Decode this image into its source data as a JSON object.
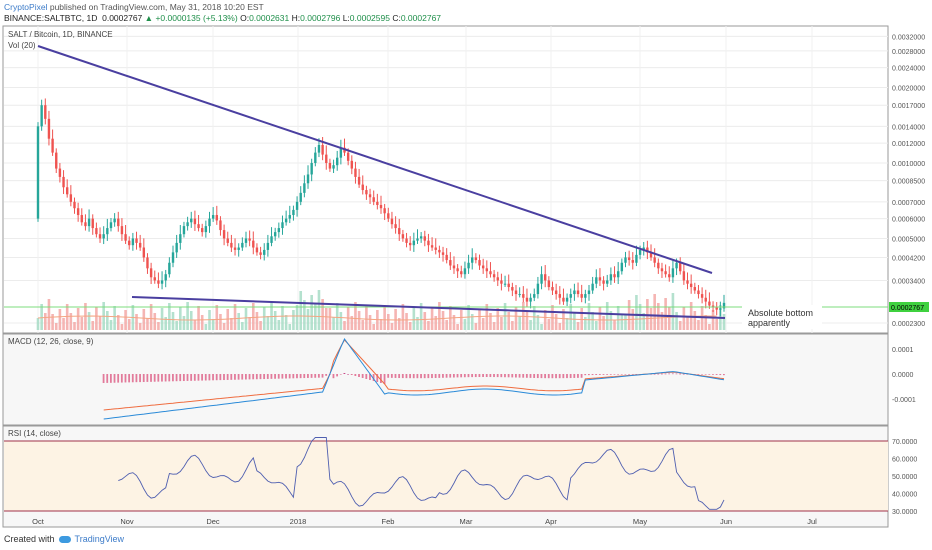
{
  "header": {
    "author": "CryptoPixel",
    "published": "published on TradingView.com, May 31, 2018 10:20 EST",
    "symbol": "BINANCE:SALTBTC, 1D",
    "last": "0.0002767",
    "change": "+0.0000135 (+5.13%)",
    "o_label": "O:",
    "o": "0.0002631",
    "h_label": "H:",
    "h": "0.0002796",
    "l_label": "L:",
    "l": "0.0002595",
    "c_label": "C:",
    "c": "0.0002767"
  },
  "pane_labels": {
    "price": "SALT / Bitcoin, 1D, BINANCE",
    "volume": "Vol (20)",
    "macd": "MACD (12, 26, close, 9)",
    "rsi": "RSI (14, close)"
  },
  "annotation": "Absolute bottom\napparently",
  "footer": {
    "created": "Created with",
    "brand": "TradingView"
  },
  "colors": {
    "up": "#26a69a",
    "down": "#ef5350",
    "trendline": "#4a3fa0",
    "macd": "#2a8ad8",
    "signal": "#ef6c3f",
    "rsi": "#4f5fb0",
    "rsi_band_line": "#a0314a",
    "support_line": "#7cdc7c",
    "price_label_bg": "#3fd13f"
  },
  "chart_data": [
    {
      "type": "candlestick",
      "title": "SALT / Bitcoin, 1D, BINANCE",
      "x_ticks": [
        "Oct",
        "Nov",
        "Dec",
        "2018",
        "Feb",
        "Mar",
        "Apr",
        "May",
        "Jun",
        "Jul"
      ],
      "y_ticks": [
        "0.0032000",
        "0.0028000",
        "0.0024000",
        "0.0020000",
        "0.0017000",
        "0.0014000",
        "0.0012000",
        "0.0010000",
        "0.0008500",
        "0.0007000",
        "0.0006000",
        "0.0005000",
        "0.0004200",
        "0.0003400",
        "0.0002767",
        "0.0002300"
      ],
      "scale": "log",
      "ylim": [
        0.00023,
        0.0033
      ],
      "closes": [
        0.0014,
        0.0017,
        0.0015,
        0.00125,
        0.0011,
        0.00095,
        0.00088,
        0.0008,
        0.00075,
        0.0007,
        0.00066,
        0.00062,
        0.00058,
        0.00056,
        0.0006,
        0.00055,
        0.00052,
        0.0005,
        0.00052,
        0.00055,
        0.00058,
        0.0006,
        0.00056,
        0.00052,
        0.00049,
        0.00047,
        0.0005,
        0.00048,
        0.00046,
        0.00042,
        0.00038,
        0.00035,
        0.00034,
        0.00033,
        0.00034,
        0.00036,
        0.0004,
        0.00044,
        0.00048,
        0.00052,
        0.00056,
        0.00058,
        0.0006,
        0.00057,
        0.00055,
        0.00053,
        0.00056,
        0.0006,
        0.00062,
        0.00059,
        0.00054,
        0.0005,
        0.00048,
        0.00046,
        0.00045,
        0.00046,
        0.00048,
        0.0005,
        0.00049,
        0.00046,
        0.00044,
        0.00043,
        0.00045,
        0.00048,
        0.00051,
        0.00053,
        0.00055,
        0.00058,
        0.0006,
        0.00062,
        0.00065,
        0.0007,
        0.00076,
        0.00083,
        0.0009,
        0.001,
        0.0011,
        0.00118,
        0.00108,
        0.001,
        0.00095,
        0.00098,
        0.00105,
        0.00115,
        0.0011,
        0.00102,
        0.00095,
        0.00088,
        0.00082,
        0.00078,
        0.00075,
        0.00073,
        0.0007,
        0.00068,
        0.00066,
        0.00063,
        0.0006,
        0.00057,
        0.00055,
        0.00052,
        0.0005,
        0.00048,
        0.00047,
        0.00049,
        0.0005,
        0.00051,
        0.00049,
        0.00047,
        0.00046,
        0.00045,
        0.00044,
        0.00043,
        0.00041,
        0.00039,
        0.00038,
        0.00037,
        0.00036,
        0.00038,
        0.0004,
        0.00042,
        0.00041,
        0.00039,
        0.00038,
        0.00037,
        0.00036,
        0.00035,
        0.00034,
        0.00033,
        0.00033,
        0.00032,
        0.00031,
        0.0003,
        0.0003,
        0.00029,
        0.00028,
        0.00029,
        0.0003,
        0.00033,
        0.00036,
        0.00034,
        0.00032,
        0.00031,
        0.0003,
        0.00029,
        0.00028,
        0.00029,
        0.0003,
        0.00031,
        0.0003,
        0.00029,
        0.0003,
        0.00031,
        0.00033,
        0.00035,
        0.00034,
        0.00033,
        0.00034,
        0.00036,
        0.00035,
        0.00037,
        0.0004,
        0.00042,
        0.00041,
        0.0004,
        0.00043,
        0.00045,
        0.00046,
        0.00044,
        0.00042,
        0.0004,
        0.00038,
        0.00037,
        0.00036,
        0.00035,
        0.00038,
        0.0004,
        0.00037,
        0.00034,
        0.00033,
        0.00032,
        0.00031,
        0.0003,
        0.00029,
        0.00028,
        0.00027,
        0.000265,
        0.00026,
        0.000263,
        0.0002767
      ]
    },
    {
      "type": "bar",
      "title": "Vol (20)",
      "description": "daily volume bars colored by candle direction with a 20-period moving average"
    },
    {
      "type": "line",
      "title": "MACD (12, 26, close, 9)",
      "y_ticks": [
        "0.0001",
        "0.0000",
        "-0.0001"
      ],
      "ylim": [
        -0.00019,
        0.00013
      ]
    },
    {
      "type": "line",
      "title": "RSI (14, close)",
      "y_ticks": [
        "70.0000",
        "60.0000",
        "50.0000",
        "40.0000",
        "30.0000"
      ],
      "ylim": [
        25,
        75
      ],
      "bands": [
        30,
        70
      ]
    }
  ]
}
